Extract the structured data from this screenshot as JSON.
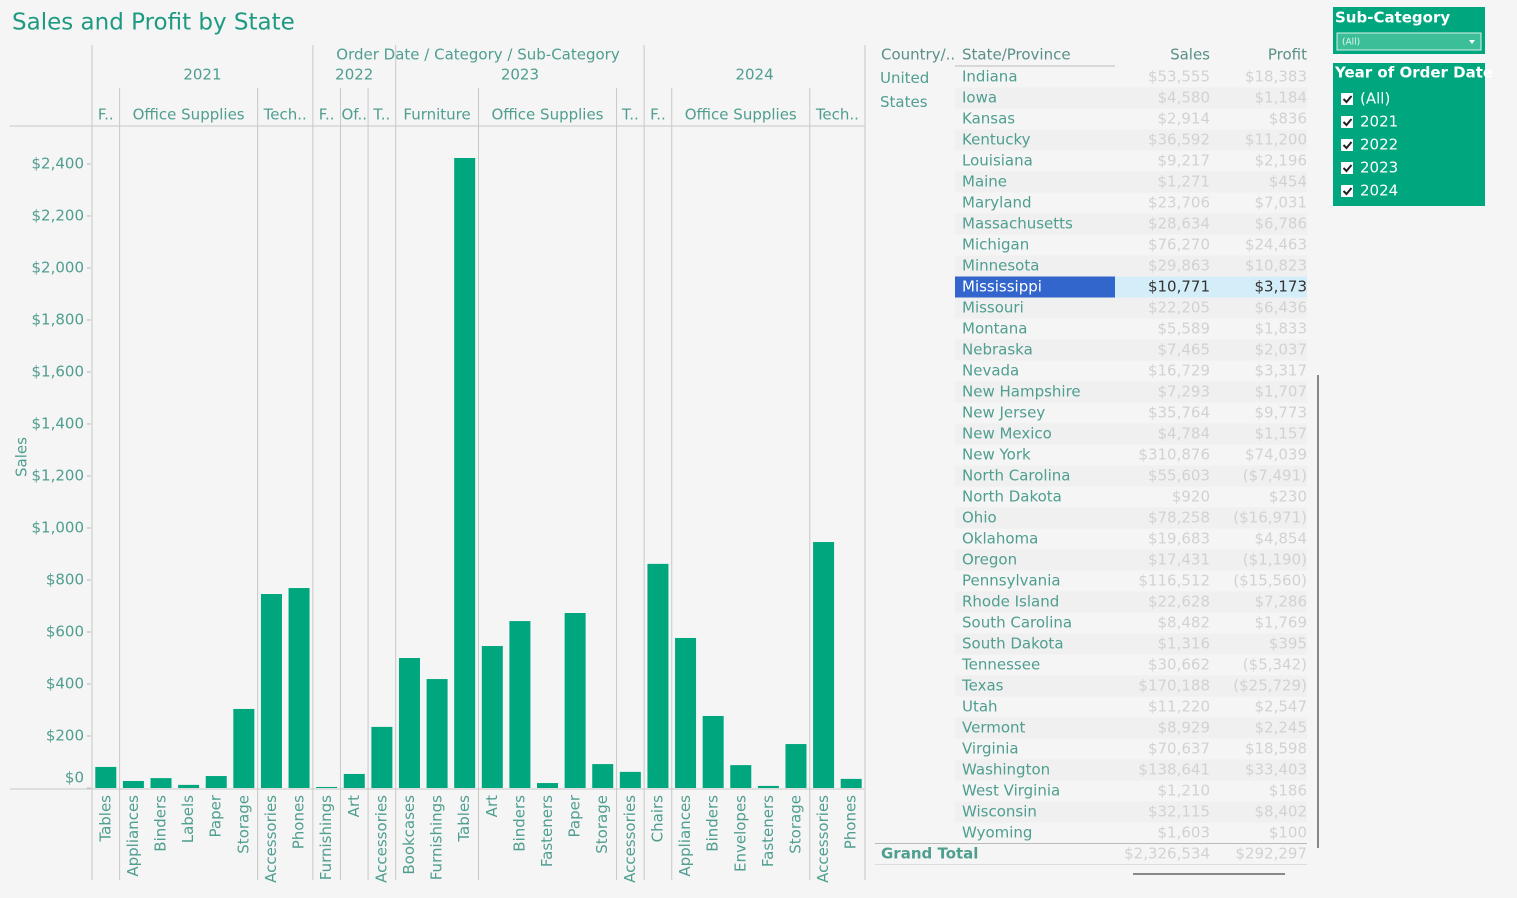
{
  "title": "Sales and Profit by State",
  "chart_data": {
    "type": "bar",
    "header": "Order Date  /  Category  /  Sub-Category",
    "y_label": "Sales",
    "color": "#00a67d",
    "ylim": [
      0,
      2546
    ],
    "yticks": [
      {
        "value": 0,
        "label": "$0"
      },
      {
        "value": 200,
        "label": "$200"
      },
      {
        "value": 400,
        "label": "$400"
      },
      {
        "value": 600,
        "label": "$600"
      },
      {
        "value": 800,
        "label": "$800"
      },
      {
        "value": 1000,
        "label": "$1,000"
      },
      {
        "value": 1200,
        "label": "$1,200"
      },
      {
        "value": 1400,
        "label": "$1,400"
      },
      {
        "value": 1600,
        "label": "$1,600"
      },
      {
        "value": 1800,
        "label": "$1,800"
      },
      {
        "value": 2000,
        "label": "$2,000"
      },
      {
        "value": 2200,
        "label": "$2,200"
      },
      {
        "value": 2400,
        "label": "$2,400"
      }
    ],
    "groups": [
      {
        "year": "2021",
        "categories": [
          {
            "name": "F..",
            "subcategories": [
              "Tables"
            ],
            "values": [
              81
            ]
          },
          {
            "name": "Office Supplies",
            "subcategories": [
              "Appliances",
              "Binders",
              "Labels",
              "Paper",
              "Storage"
            ],
            "values": [
              27,
              38,
              12,
              46,
              304
            ]
          },
          {
            "name": "Tech..",
            "subcategories": [
              "Accessories",
              "Phones"
            ],
            "values": [
              746,
              769
            ]
          }
        ]
      },
      {
        "year": "2022",
        "categories": [
          {
            "name": "F..",
            "subcategories": [
              "Furnishings"
            ],
            "values": [
              4
            ]
          },
          {
            "name": "Of..",
            "subcategories": [
              "Art"
            ],
            "values": [
              54
            ]
          },
          {
            "name": "T..",
            "subcategories": [
              "Accessories"
            ],
            "values": [
              235
            ]
          }
        ]
      },
      {
        "year": "2023",
        "categories": [
          {
            "name": "Furniture",
            "subcategories": [
              "Bookcases",
              "Furnishings",
              "Tables"
            ],
            "values": [
              500,
              419,
              2423
            ]
          },
          {
            "name": "Office Supplies",
            "subcategories": [
              "Art",
              "Binders",
              "Fasteners",
              "Paper",
              "Storage"
            ],
            "values": [
              546,
              642,
              19,
              673,
              92
            ]
          },
          {
            "name": "T..",
            "subcategories": [
              "Accessories"
            ],
            "values": [
              62
            ]
          }
        ]
      },
      {
        "year": "2024",
        "categories": [
          {
            "name": "F..",
            "subcategories": [
              "Chairs"
            ],
            "values": [
              862
            ]
          },
          {
            "name": "Office Supplies",
            "subcategories": [
              "Appliances",
              "Binders",
              "Envelopes",
              "Fasteners",
              "Storage"
            ],
            "values": [
              577,
              277,
              88,
              8,
              169
            ]
          },
          {
            "name": "Tech..",
            "subcategories": [
              "Accessories",
              "Phones"
            ],
            "values": [
              946,
              35
            ]
          }
        ]
      }
    ]
  },
  "table": {
    "headers": [
      "Country/..",
      "State/Province",
      "Sales",
      "Profit"
    ],
    "country": "United States",
    "rows": [
      {
        "state": "Indiana",
        "sales": "$53,555",
        "profit": "$18,383"
      },
      {
        "state": "Iowa",
        "sales": "$4,580",
        "profit": "$1,184"
      },
      {
        "state": "Kansas",
        "sales": "$2,914",
        "profit": "$836"
      },
      {
        "state": "Kentucky",
        "sales": "$36,592",
        "profit": "$11,200"
      },
      {
        "state": "Louisiana",
        "sales": "$9,217",
        "profit": "$2,196"
      },
      {
        "state": "Maine",
        "sales": "$1,271",
        "profit": "$454"
      },
      {
        "state": "Maryland",
        "sales": "$23,706",
        "profit": "$7,031"
      },
      {
        "state": "Massachusetts",
        "sales": "$28,634",
        "profit": "$6,786"
      },
      {
        "state": "Michigan",
        "sales": "$76,270",
        "profit": "$24,463"
      },
      {
        "state": "Minnesota",
        "sales": "$29,863",
        "profit": "$10,823"
      },
      {
        "state": "Mississippi",
        "sales": "$10,771",
        "profit": "$3,173",
        "selected": true
      },
      {
        "state": "Missouri",
        "sales": "$22,205",
        "profit": "$6,436"
      },
      {
        "state": "Montana",
        "sales": "$5,589",
        "profit": "$1,833"
      },
      {
        "state": "Nebraska",
        "sales": "$7,465",
        "profit": "$2,037"
      },
      {
        "state": "Nevada",
        "sales": "$16,729",
        "profit": "$3,317"
      },
      {
        "state": "New Hampshire",
        "sales": "$7,293",
        "profit": "$1,707"
      },
      {
        "state": "New Jersey",
        "sales": "$35,764",
        "profit": "$9,773"
      },
      {
        "state": "New Mexico",
        "sales": "$4,784",
        "profit": "$1,157"
      },
      {
        "state": "New York",
        "sales": "$310,876",
        "profit": "$74,039"
      },
      {
        "state": "North Carolina",
        "sales": "$55,603",
        "profit": "($7,491)"
      },
      {
        "state": "North Dakota",
        "sales": "$920",
        "profit": "$230"
      },
      {
        "state": "Ohio",
        "sales": "$78,258",
        "profit": "($16,971)"
      },
      {
        "state": "Oklahoma",
        "sales": "$19,683",
        "profit": "$4,854"
      },
      {
        "state": "Oregon",
        "sales": "$17,431",
        "profit": "($1,190)"
      },
      {
        "state": "Pennsylvania",
        "sales": "$116,512",
        "profit": "($15,560)"
      },
      {
        "state": "Rhode Island",
        "sales": "$22,628",
        "profit": "$7,286"
      },
      {
        "state": "South Carolina",
        "sales": "$8,482",
        "profit": "$1,769"
      },
      {
        "state": "South Dakota",
        "sales": "$1,316",
        "profit": "$395"
      },
      {
        "state": "Tennessee",
        "sales": "$30,662",
        "profit": "($5,342)"
      },
      {
        "state": "Texas",
        "sales": "$170,188",
        "profit": "($25,729)"
      },
      {
        "state": "Utah",
        "sales": "$11,220",
        "profit": "$2,547"
      },
      {
        "state": "Vermont",
        "sales": "$8,929",
        "profit": "$2,245"
      },
      {
        "state": "Virginia",
        "sales": "$70,637",
        "profit": "$18,598"
      },
      {
        "state": "Washington",
        "sales": "$138,641",
        "profit": "$33,403"
      },
      {
        "state": "West Virginia",
        "sales": "$1,210",
        "profit": "$186"
      },
      {
        "state": "Wisconsin",
        "sales": "$32,115",
        "profit": "$8,402"
      },
      {
        "state": "Wyoming",
        "sales": "$1,603",
        "profit": "$100"
      }
    ],
    "total": {
      "label": "Grand Total",
      "sales": "$2,326,534",
      "profit": "$292,297"
    }
  },
  "filters": {
    "subcategory": {
      "title": "Sub-Category",
      "value": "(All)"
    },
    "year": {
      "title": "Year of Order Date",
      "options": [
        "(All)",
        "2021",
        "2022",
        "2023",
        "2024"
      ]
    }
  }
}
